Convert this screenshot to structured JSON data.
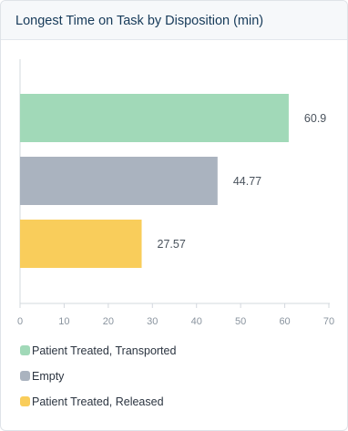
{
  "card": {
    "title": "Longest Time on Task by Disposition (min)"
  },
  "chart_data": {
    "type": "bar",
    "orientation": "horizontal",
    "title": "Longest Time on Task by Disposition (min)",
    "categories": [
      "Patient Treated, Transported",
      "Empty",
      "Patient Treated, Released"
    ],
    "values": [
      60.9,
      44.77,
      27.57
    ],
    "data_labels": [
      "60.9",
      "44.77",
      "27.57"
    ],
    "colors": [
      "#a1d9b8",
      "#aab3bf",
      "#f9cd5b"
    ],
    "xlim": [
      0,
      70
    ],
    "x_ticks": [
      "0",
      "10",
      "20",
      "30",
      "40",
      "50",
      "60",
      "70"
    ],
    "xlabel": "",
    "ylabel": "",
    "grid": false,
    "legend_position": "bottom-left"
  },
  "legend": {
    "items": [
      {
        "label": "Patient Treated, Transported",
        "color": "#a1d9b8"
      },
      {
        "label": "Empty",
        "color": "#aab3bf"
      },
      {
        "label": "Patient Treated, Released",
        "color": "#f9cd5b"
      }
    ]
  }
}
